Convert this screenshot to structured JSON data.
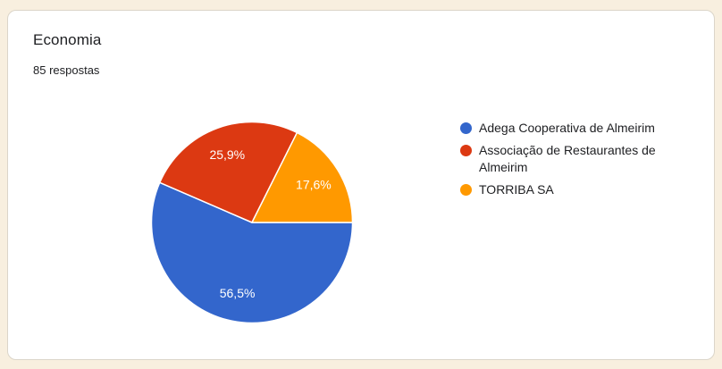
{
  "page": {
    "background_color": "#F8EFDF",
    "card_background": "#FFFFFF",
    "card_border_color": "#DBD5C9",
    "text_color": "#202124"
  },
  "chart_data": {
    "type": "pie",
    "title": "Economia",
    "subtitle": "85 respostas",
    "categories": [
      "Adega Cooperativa de Almeirim",
      "Associação de Restaurantes de Almeirim",
      "TORRIBA SA"
    ],
    "values": [
      56.5,
      25.9,
      17.6
    ],
    "value_labels": [
      "56,5%",
      "25,9%",
      "17,6%"
    ],
    "colors": [
      "#3366CC",
      "#DC3912",
      "#FF9900"
    ],
    "slice_label_color": "#FFFFFF",
    "legend_position": "right",
    "start_angle": "east",
    "direction": "clockwise"
  }
}
